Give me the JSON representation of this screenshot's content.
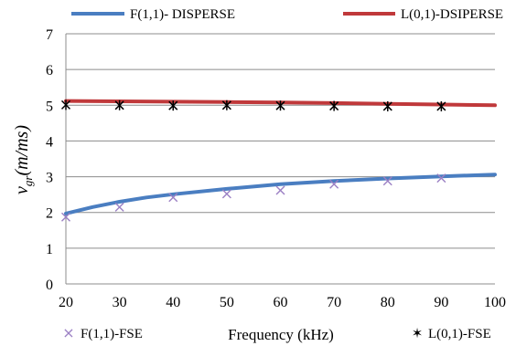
{
  "chart_data": {
    "type": "line",
    "xlabel": "Frequency (kHz)",
    "ylabel_main": "v",
    "ylabel_sub": "gr",
    "ylabel_rest": "(m/ms)",
    "xlim": [
      20,
      100
    ],
    "ylim": [
      0,
      7
    ],
    "xticks": [
      "20",
      "30",
      "40",
      "50",
      "60",
      "70",
      "80",
      "90",
      "100"
    ],
    "yticks": [
      "0",
      "1",
      "2",
      "3",
      "4",
      "5",
      "6",
      "7"
    ],
    "grid": "horizontal",
    "legend_placement": "top and bottom",
    "series": [
      {
        "name": "F(1,1)- DISPERSE",
        "kind": "line",
        "color": "#4a7ec1",
        "x": [
          20,
          25,
          30,
          35,
          40,
          50,
          60,
          70,
          80,
          90,
          100
        ],
        "y": [
          1.97,
          2.15,
          2.3,
          2.42,
          2.51,
          2.66,
          2.79,
          2.88,
          2.95,
          3.01,
          3.06
        ]
      },
      {
        "name": "L(0,1)-DSIPERSE",
        "kind": "line",
        "color": "#c0393b",
        "x": [
          20,
          30,
          40,
          50,
          60,
          70,
          80,
          90,
          100
        ],
        "y": [
          5.12,
          5.11,
          5.1,
          5.09,
          5.08,
          5.06,
          5.04,
          5.02,
          5.0
        ]
      },
      {
        "name": "F(1,1)-FSE",
        "kind": "marker-x",
        "color": "#9b80c4",
        "x": [
          20,
          30,
          40,
          50,
          60,
          70,
          80,
          90
        ],
        "y": [
          1.87,
          2.15,
          2.42,
          2.52,
          2.62,
          2.79,
          2.88,
          2.96
        ]
      },
      {
        "name": "L(0,1)-FSE",
        "kind": "marker-star",
        "color": "#000000",
        "x": [
          20,
          30,
          40,
          50,
          60,
          70,
          80,
          90
        ],
        "y": [
          5.01,
          5.0,
          4.99,
          5.0,
          4.99,
          4.98,
          4.97,
          4.97
        ]
      }
    ]
  }
}
